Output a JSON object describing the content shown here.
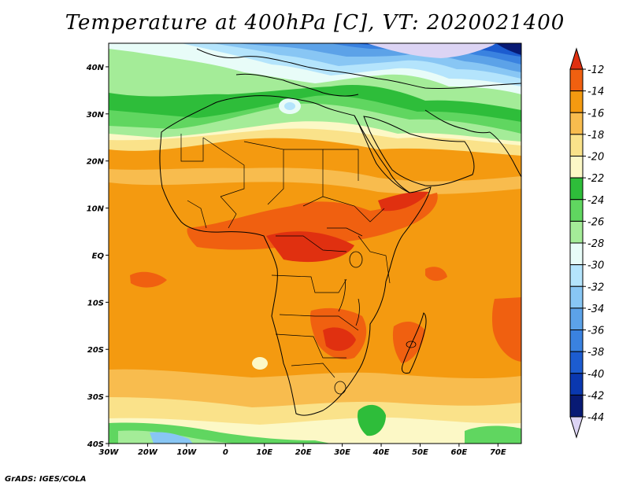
{
  "title": "Temperature at 400hPa [C], VT: 2020021400",
  "credit": "GrADS: IGES/COLA",
  "map": {
    "lon_range": [
      -30,
      76
    ],
    "lat_range": [
      -40,
      45
    ],
    "lat_ticks": [
      {
        "value": 40,
        "label": "40N"
      },
      {
        "value": 30,
        "label": "30N"
      },
      {
        "value": 20,
        "label": "20N"
      },
      {
        "value": 10,
        "label": "10N"
      },
      {
        "value": 0,
        "label": "EQ"
      },
      {
        "value": -10,
        "label": "10S"
      },
      {
        "value": -20,
        "label": "20S"
      },
      {
        "value": -30,
        "label": "30S"
      },
      {
        "value": -40,
        "label": "40S"
      }
    ],
    "lon_ticks": [
      {
        "value": -30,
        "label": "30W"
      },
      {
        "value": -20,
        "label": "20W"
      },
      {
        "value": -10,
        "label": "10W"
      },
      {
        "value": 0,
        "label": "0"
      },
      {
        "value": 10,
        "label": "10E"
      },
      {
        "value": 20,
        "label": "20E"
      },
      {
        "value": 30,
        "label": "30E"
      },
      {
        "value": 40,
        "label": "40E"
      },
      {
        "value": 50,
        "label": "50E"
      },
      {
        "value": 60,
        "label": "60E"
      },
      {
        "value": 70,
        "label": "70E"
      }
    ]
  },
  "colorbar": {
    "labels": [
      "-12",
      "-14",
      "-16",
      "-18",
      "-20",
      "-22",
      "-24",
      "-26",
      "-28",
      "-30",
      "-32",
      "-34",
      "-36",
      "-38",
      "-40",
      "-42",
      "-44"
    ],
    "colors": [
      "#e03010",
      "#f06010",
      "#f49a10",
      "#f8bc4e",
      "#fae28a",
      "#fcf8c6",
      "#2ebd3a",
      "#60d660",
      "#a4ec98",
      "#e8fcf8",
      "#b4e4fc",
      "#88c6f4",
      "#5ca2e8",
      "#3a82e0",
      "#1c5cd0",
      "#0a38b0",
      "#081a74",
      "#dcd4f4"
    ]
  }
}
